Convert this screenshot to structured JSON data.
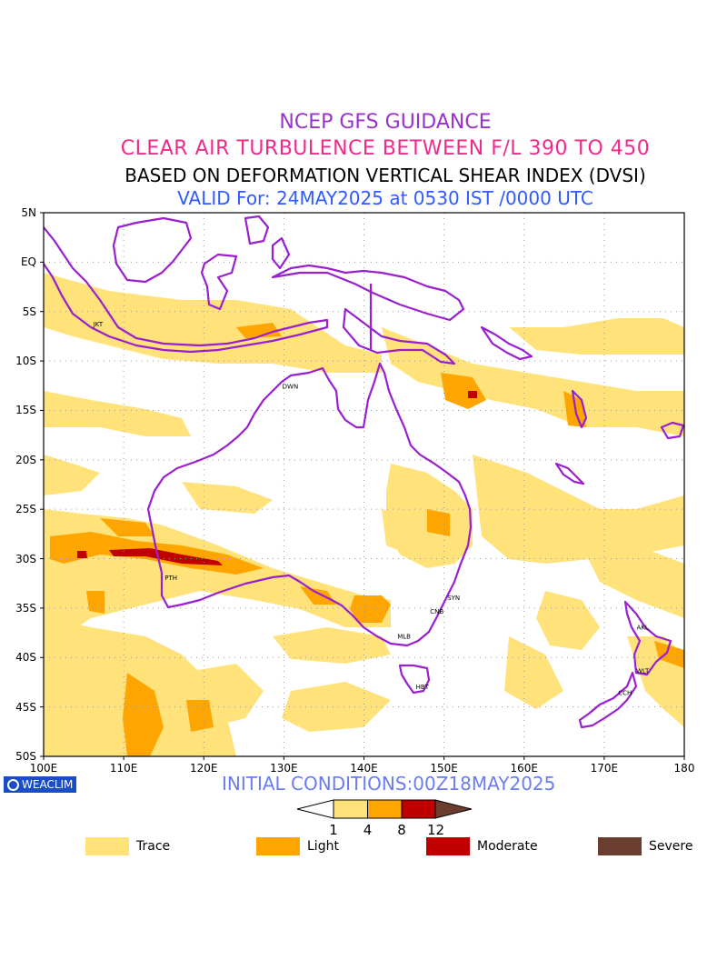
{
  "titles": {
    "line1": "NCEP GFS GUIDANCE",
    "line2": "CLEAR AIR TURBULENCE BETWEEN F/L 390 TO 450",
    "line3": "BASED ON DEFORMATION VERTICAL SHEAR INDEX (DVSI)",
    "line4": "VALID For: 24MAY2025 at 0530 IST /0000 UTC"
  },
  "initial_conditions": "INITIAL CONDITIONS:00Z18MAY2025",
  "logo_text": "WEACLIM",
  "axes": {
    "lat_labels": [
      "5N",
      "EQ",
      "5S",
      "10S",
      "15S",
      "20S",
      "25S",
      "30S",
      "35S",
      "40S",
      "45S",
      "50S"
    ],
    "lon_labels": [
      "100E",
      "110E",
      "120E",
      "130E",
      "140E",
      "150E",
      "160E",
      "170E",
      "180"
    ],
    "lat_range": [
      -50,
      5
    ],
    "lon_range": [
      100,
      180
    ]
  },
  "stations": [
    {
      "code": "JKT",
      "lon": 106.8,
      "lat": -6.2
    },
    {
      "code": "DWN",
      "lon": 130.8,
      "lat": -12.5
    },
    {
      "code": "PTH",
      "lon": 115.9,
      "lat": -31.9
    },
    {
      "code": "SYN",
      "lon": 151.2,
      "lat": -33.9
    },
    {
      "code": "CNB",
      "lon": 149.1,
      "lat": -35.3
    },
    {
      "code": "MLB",
      "lon": 145.0,
      "lat": -37.8
    },
    {
      "code": "HBT",
      "lon": 147.3,
      "lat": -42.9
    },
    {
      "code": "AKL",
      "lon": 174.8,
      "lat": -36.9
    },
    {
      "code": "WLT",
      "lon": 174.8,
      "lat": -41.3
    },
    {
      "code": "CCH",
      "lon": 172.6,
      "lat": -43.5
    }
  ],
  "colorbar": {
    "ticks": [
      "1",
      "4",
      "8",
      "12"
    ],
    "colors": [
      "#ffe27a",
      "#ffa500",
      "#c00000",
      "#6b3d2f"
    ]
  },
  "legend": [
    {
      "label": "Trace",
      "color": "#ffe27a"
    },
    {
      "label": "Light",
      "color": "#ffa500"
    },
    {
      "label": "Moderate",
      "color": "#c00000"
    },
    {
      "label": "Severe",
      "color": "#6b3d2f"
    }
  ],
  "colors": {
    "coastline": "#9a1fcf",
    "trace": "#ffe27a",
    "light": "#ffa500",
    "moderate": "#c00000",
    "severe": "#6b3d2f"
  }
}
